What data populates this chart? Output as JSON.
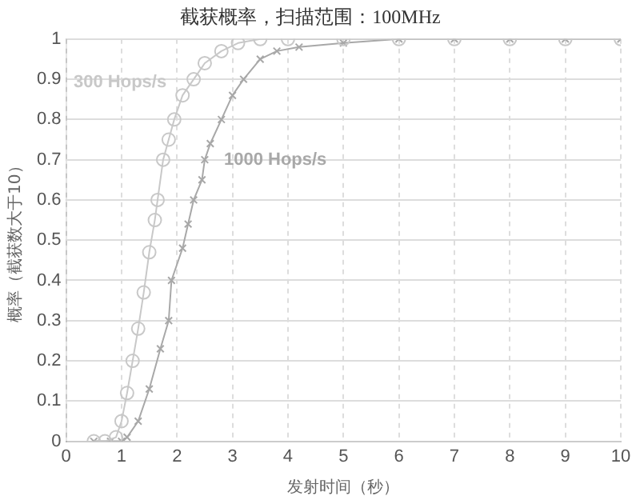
{
  "chart_data": {
    "type": "line",
    "title": "截获概率，扫描范围：100MHz",
    "xlabel": "发射时间（秒）",
    "ylabel": "概率（截获数大于10）",
    "xlim": [
      0,
      10
    ],
    "xticks": [
      0,
      1,
      2,
      3,
      4,
      5,
      6,
      7,
      8,
      9,
      10
    ],
    "ylim": [
      0,
      1
    ],
    "yticks": [
      0,
      0.1,
      0.2,
      0.3,
      0.4,
      0.5,
      0.6,
      0.7,
      0.8,
      0.9,
      1
    ],
    "grid": true,
    "legend": false,
    "line_style": "solid",
    "series": [
      {
        "name": "300 Hops/s",
        "color": "#c8c8c8",
        "marker": "circle",
        "x": [
          0.5,
          0.7,
          0.9,
          1.0,
          1.1,
          1.2,
          1.3,
          1.4,
          1.5,
          1.6,
          1.65,
          1.75,
          1.85,
          1.95,
          2.1,
          2.3,
          2.5,
          2.8,
          3.1,
          3.5,
          4,
          5,
          6,
          7,
          8,
          9,
          10
        ],
        "values": [
          0,
          0,
          0.01,
          0.05,
          0.12,
          0.2,
          0.28,
          0.37,
          0.47,
          0.55,
          0.6,
          0.7,
          0.75,
          0.8,
          0.86,
          0.9,
          0.94,
          0.97,
          0.99,
          1,
          1,
          1,
          1,
          1,
          1,
          1,
          1
        ]
      },
      {
        "name": "1000 Hops/s",
        "color": "#a8a8a8",
        "marker": "cross",
        "x": [
          0.5,
          0.8,
          1.0,
          1.1,
          1.3,
          1.5,
          1.7,
          1.85,
          1.9,
          2.1,
          2.2,
          2.3,
          2.45,
          2.5,
          2.6,
          2.8,
          3.0,
          3.2,
          3.5,
          3.8,
          4.2,
          5,
          6,
          7,
          8,
          9,
          10
        ],
        "values": [
          0,
          0,
          0,
          0.01,
          0.05,
          0.13,
          0.23,
          0.3,
          0.4,
          0.48,
          0.54,
          0.6,
          0.65,
          0.7,
          0.74,
          0.8,
          0.86,
          0.9,
          0.95,
          0.97,
          0.98,
          0.99,
          1,
          1,
          1,
          1,
          1
        ]
      }
    ]
  }
}
